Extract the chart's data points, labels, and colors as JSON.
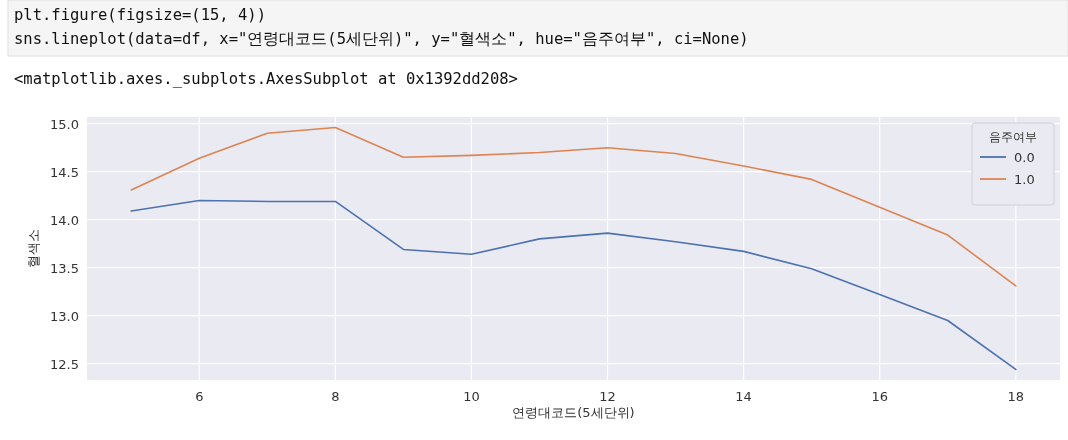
{
  "chart_data": {
    "type": "line",
    "annotations": [
      "plt.figure(figsize=(15, 4))",
      "sns.lineplot(data=df, x=\"연령대코드(5세단위)\", y=\"혈색소\", hue=\"음주여부\", ci=None)",
      "<matplotlib.axes._subplots.AxesSubplot at 0x1392dd208>"
    ],
    "xlabel": "연령대코드(5세단위)",
    "ylabel": "혈색소",
    "legend_title": "음주여부",
    "x": [
      5,
      6,
      7,
      8,
      9,
      10,
      11,
      12,
      13,
      14,
      15,
      16,
      17,
      18
    ],
    "series": [
      {
        "name": "0.0",
        "color": "#4c72b0",
        "values": [
          14.09,
          14.2,
          14.19,
          14.19,
          13.69,
          13.64,
          13.8,
          13.86,
          13.77,
          13.67,
          13.49,
          13.22,
          12.95,
          12.44
        ]
      },
      {
        "name": "1.0",
        "color": "#dd8452",
        "values": [
          14.31,
          14.64,
          14.9,
          14.96,
          14.65,
          14.67,
          14.7,
          14.75,
          14.69,
          14.56,
          14.42,
          14.13,
          13.84,
          13.31
        ]
      }
    ],
    "xlim": [
      4.35,
      18.65
    ],
    "ylim": [
      12.33,
      15.07
    ],
    "xticks": [
      6,
      8,
      10,
      12,
      14,
      16,
      18
    ],
    "yticks": [
      {
        "value": 12.5,
        "label": "12.5"
      },
      {
        "value": 13,
        "label": "13.0"
      },
      {
        "value": 13.5,
        "label": "13.5"
      },
      {
        "value": 14,
        "label": "14.0"
      },
      {
        "value": 14.5,
        "label": "14.5"
      },
      {
        "value": 15,
        "label": "15.0"
      }
    ],
    "grid": true,
    "legend": "top right"
  }
}
